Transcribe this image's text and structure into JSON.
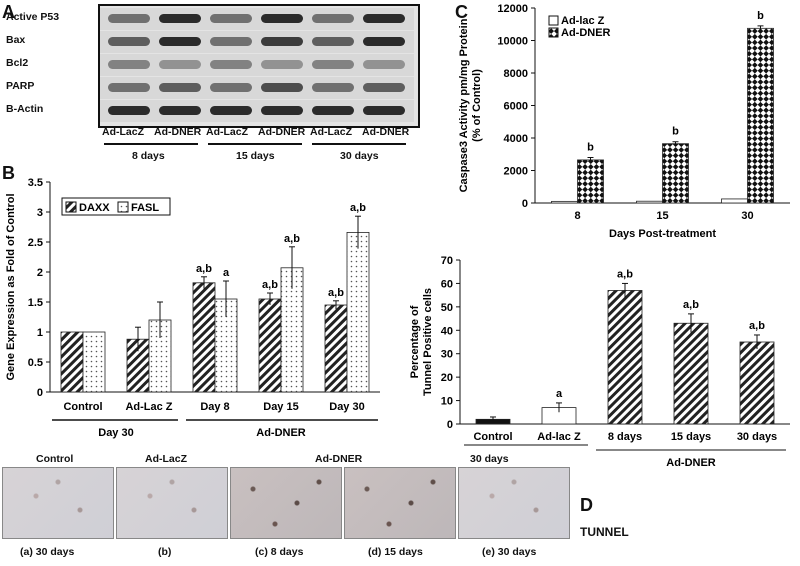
{
  "panels": {
    "A": "A",
    "B": "B",
    "C": "C",
    "D": "D"
  },
  "western_blot": {
    "rows": [
      "Active P53",
      "Bax",
      "Bcl2",
      "PARP",
      "B-Actin"
    ],
    "lanes": [
      "Ad-LacZ",
      "Ad-DNER",
      "Ad-LacZ",
      "Ad-DNER",
      "Ad-LacZ",
      "Ad-DNER"
    ],
    "timepoints": [
      "8 days",
      "15 days",
      "30 days"
    ]
  },
  "chart_data": [
    {
      "id": "B",
      "type": "bar",
      "ylabel": "Gene Expression as Fold of Control",
      "ylim": [
        0,
        3.5
      ],
      "yticks": [
        "0",
        "0.5",
        "1",
        "1.5",
        "2",
        "2.5",
        "3",
        "3.5"
      ],
      "categories": [
        "Control",
        "Ad-Lac Z",
        "Day 8",
        "Day 15",
        "Day 30"
      ],
      "group_labels": [
        "Day 30",
        "Ad-DNER"
      ],
      "series": [
        {
          "name": "DAXX",
          "values": [
            1.0,
            0.88,
            1.82,
            1.55,
            1.45
          ],
          "errors": [
            0,
            0.2,
            0.1,
            0.1,
            0.07
          ],
          "annotations": [
            "",
            "",
            "a,b",
            "a,b",
            "a,b"
          ]
        },
        {
          "name": "FASL",
          "values": [
            1.0,
            1.2,
            1.55,
            2.07,
            2.66
          ],
          "errors": [
            0,
            0.3,
            0.3,
            0.35,
            0.27
          ],
          "annotations": [
            "",
            "",
            "a",
            "a,b",
            "a,b"
          ]
        }
      ]
    },
    {
      "id": "C",
      "type": "bar",
      "ylabel": "Caspase3 Activity pm/mg Protein (% of Control)",
      "xlabel": "Days Post-treatment",
      "ylim": [
        0,
        12000
      ],
      "yticks": [
        "0",
        "2000",
        "4000",
        "6000",
        "8000",
        "10000",
        "12000"
      ],
      "categories": [
        "8",
        "15",
        "30"
      ],
      "series": [
        {
          "name": "Ad-lac Z",
          "values": [
            100,
            110,
            250
          ],
          "errors": [
            0,
            0,
            0
          ],
          "annotations": [
            "",
            "",
            ""
          ]
        },
        {
          "name": "Ad-DNER",
          "values": [
            2650,
            3650,
            10750
          ],
          "errors": [
            150,
            120,
            150
          ],
          "annotations": [
            "b",
            "b",
            "b"
          ]
        }
      ]
    },
    {
      "id": "TUNNEL",
      "type": "bar",
      "ylabel": "Percentage of Tunnel Positive cells",
      "ylim": [
        0,
        70
      ],
      "yticks": [
        "0",
        "10",
        "20",
        "30",
        "40",
        "50",
        "60",
        "70"
      ],
      "categories": [
        "Control",
        "Ad-lac Z",
        "8 days",
        "15 days",
        "30 days"
      ],
      "group_label": "Ad-DNER",
      "values": [
        2,
        7,
        57,
        43,
        35
      ],
      "errors": [
        1,
        2,
        3,
        4,
        3
      ],
      "annotations": [
        "",
        "a",
        "a,b",
        "a,b",
        "a,b"
      ]
    }
  ],
  "micrographs": {
    "titles": [
      "Control",
      "Ad-LacZ",
      "Ad-DNER",
      "30 days"
    ],
    "captions": [
      "(a) 30 days",
      "(b)",
      "(c) 8 days",
      "(d) 15 days",
      "(e) 30 days"
    ],
    "label": "TUNNEL"
  }
}
